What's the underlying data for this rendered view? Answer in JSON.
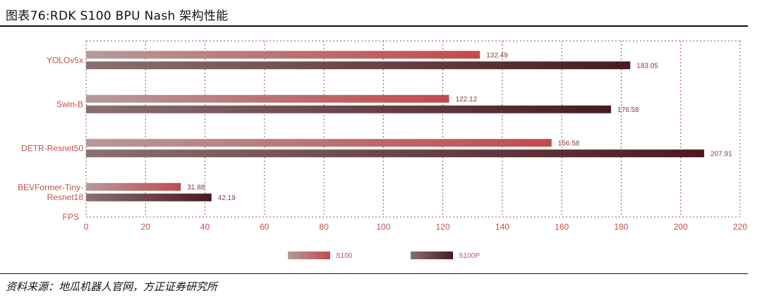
{
  "header": {
    "title": "图表76:RDK S100 BPU Nash 架构性能"
  },
  "footer": {
    "source": "资料来源：地瓜机器人官网，方正证券研究所"
  },
  "chart_data": {
    "type": "bar",
    "orientation": "horizontal",
    "categories": [
      "YOLOv5x",
      "Swin-B",
      "DETR-Resnet50",
      "BEVFormer-Tiny-Resnet18"
    ],
    "category_lines": [
      [
        "YOLOv5x"
      ],
      [
        "Swin-B"
      ],
      [
        "DETR-Resnet50"
      ],
      [
        "BEVFormer-Tiny-",
        "Resnet18"
      ]
    ],
    "series": [
      {
        "name": "S100",
        "values": [
          132.49,
          122.12,
          156.58,
          31.88
        ],
        "labels": [
          "132.49",
          "122.12",
          "156.58",
          "31.88"
        ]
      },
      {
        "name": "S100P",
        "values": [
          183.05,
          176.58,
          207.91,
          42.19
        ],
        "labels": [
          "183.05",
          "176.58",
          "207.91",
          "42.19"
        ]
      }
    ],
    "xlabel": "FPS",
    "xlim": [
      0,
      220
    ],
    "xticks": [
      "0",
      "20",
      "40",
      "60",
      "80",
      "100",
      "120",
      "140",
      "160",
      "180",
      "200",
      "220"
    ],
    "grid": "vertical dotted",
    "legend_position": "bottom",
    "colors": {
      "s100_start": "#b59a9a",
      "s100_end": "#c44a4c",
      "s100p_start": "#8a7070",
      "s100p_end": "#4a1a1f",
      "text": "#c0504d",
      "grid": "#a05050",
      "label": "#8b3a3a"
    }
  }
}
